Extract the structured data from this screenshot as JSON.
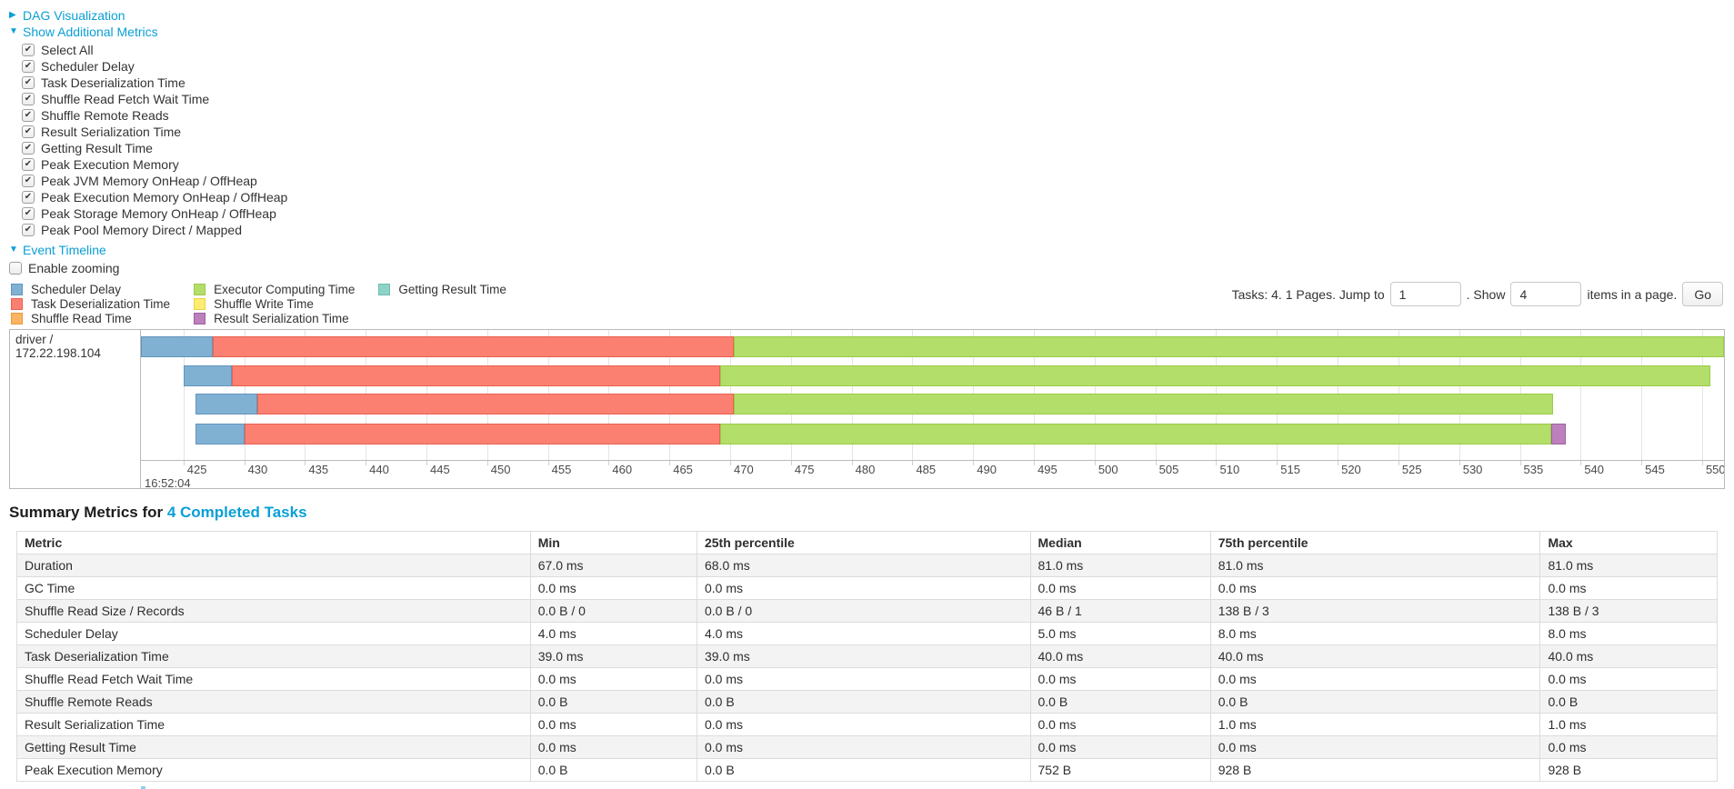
{
  "colors": {
    "link": "#0a9fd6",
    "scheduler_delay": {
      "fill": "#80B1D3",
      "border": "#6295bd"
    },
    "task_deserialization": {
      "fill": "#FB8072",
      "border": "#e9614f"
    },
    "shuffle_read": {
      "fill": "#FDB462",
      "border": "#ea9a3c"
    },
    "executor_computing": {
      "fill": "#B3DE69",
      "border": "#9cc94b"
    },
    "shuffle_write": {
      "fill": "#FFED6F",
      "border": "#e5d34d"
    },
    "result_serialization": {
      "fill": "#BC80BD",
      "border": "#a05fa2"
    },
    "getting_result": {
      "fill": "#8DD3C7",
      "border": "#6fbcaf"
    }
  },
  "sections": {
    "dag": {
      "label": "DAG Visualization",
      "state": "collapsed",
      "arrow": "▶"
    },
    "metrics": {
      "label": "Show Additional Metrics",
      "state": "expanded",
      "arrow": "▼"
    },
    "timeline": {
      "label": "Event Timeline",
      "state": "expanded",
      "arrow": "▼"
    }
  },
  "metric_checkboxes": [
    {
      "label": "Select All",
      "checked": true
    },
    {
      "label": "Scheduler Delay",
      "checked": true
    },
    {
      "label": "Task Deserialization Time",
      "checked": true
    },
    {
      "label": "Shuffle Read Fetch Wait Time",
      "checked": true
    },
    {
      "label": "Shuffle Remote Reads",
      "checked": true
    },
    {
      "label": "Result Serialization Time",
      "checked": true
    },
    {
      "label": "Getting Result Time",
      "checked": true
    },
    {
      "label": "Peak Execution Memory",
      "checked": true
    },
    {
      "label": "Peak JVM Memory OnHeap / OffHeap",
      "checked": true
    },
    {
      "label": "Peak Execution Memory OnHeap / OffHeap",
      "checked": true
    },
    {
      "label": "Peak Storage Memory OnHeap / OffHeap",
      "checked": true
    },
    {
      "label": "Peak Pool Memory Direct / Mapped",
      "checked": true
    }
  ],
  "enable_zooming": {
    "label": "Enable zooming",
    "checked": false
  },
  "pagination": {
    "tasks_text": "Tasks: 4. 1 Pages. Jump to",
    "jump_value": "1",
    "mid_text": ". Show",
    "show_value": "4",
    "suffix_text": "items in a page.",
    "go_label": "Go"
  },
  "chart_data": {
    "type": "timeline",
    "group": "driver / 172.22.198.104",
    "axis": {
      "min": 421.5,
      "max": 551.8,
      "first_tick": 425,
      "tick_step": 5,
      "last_tick": 550,
      "major_label": "16:52:04"
    },
    "legend": [
      {
        "key": "scheduler_delay",
        "label": "Scheduler Delay"
      },
      {
        "key": "task_deserialization",
        "label": "Task Deserialization Time"
      },
      {
        "key": "shuffle_read",
        "label": "Shuffle Read Time"
      },
      {
        "key": "executor_computing",
        "label": "Executor Computing Time"
      },
      {
        "key": "shuffle_write",
        "label": "Shuffle Write Time"
      },
      {
        "key": "result_serialization",
        "label": "Result Serialization Time"
      },
      {
        "key": "getting_result",
        "label": "Getting Result Time"
      }
    ],
    "tasks": [
      {
        "segments": [
          {
            "type": "scheduler_delay",
            "start": 421.5,
            "end": 427.4
          },
          {
            "type": "task_deserialization",
            "start": 427.4,
            "end": 470.3
          },
          {
            "type": "executor_computing",
            "start": 470.3,
            "end": 551.8
          }
        ]
      },
      {
        "segments": [
          {
            "type": "scheduler_delay",
            "start": 425.0,
            "end": 429.0
          },
          {
            "type": "task_deserialization",
            "start": 429.0,
            "end": 469.2
          },
          {
            "type": "executor_computing",
            "start": 469.2,
            "end": 550.7
          }
        ]
      },
      {
        "segments": [
          {
            "type": "scheduler_delay",
            "start": 426.0,
            "end": 431.1
          },
          {
            "type": "task_deserialization",
            "start": 431.1,
            "end": 470.3
          },
          {
            "type": "executor_computing",
            "start": 470.3,
            "end": 537.7
          }
        ]
      },
      {
        "segments": [
          {
            "type": "scheduler_delay",
            "start": 426.0,
            "end": 430.0
          },
          {
            "type": "task_deserialization",
            "start": 430.0,
            "end": 469.2
          },
          {
            "type": "executor_computing",
            "start": 469.2,
            "end": 537.6
          },
          {
            "type": "result_serialization",
            "start": 537.6,
            "end": 538.8
          }
        ]
      }
    ]
  },
  "summary": {
    "heading_prefix": "Summary Metrics for ",
    "heading_link": "4 Completed Tasks",
    "table": {
      "columns": [
        "Metric",
        "Min",
        "25th percentile",
        "Median",
        "75th percentile",
        "Max"
      ],
      "col_widths": [
        "30.2%",
        "9.8%",
        "19.6%",
        "10.6%",
        "19.4%",
        "10.4%"
      ],
      "rows": [
        {
          "metric": "Duration",
          "values": [
            "67.0 ms",
            "68.0 ms",
            "81.0 ms",
            "81.0 ms",
            "81.0 ms"
          ]
        },
        {
          "metric": "GC Time",
          "values": [
            "0.0 ms",
            "0.0 ms",
            "0.0 ms",
            "0.0 ms",
            "0.0 ms"
          ]
        },
        {
          "metric": "Shuffle Read Size / Records",
          "values": [
            "0.0 B / 0",
            "0.0 B / 0",
            "46 B / 1",
            "138 B / 3",
            "138 B / 3"
          ]
        },
        {
          "metric": "Scheduler Delay",
          "values": [
            "4.0 ms",
            "4.0 ms",
            "5.0 ms",
            "8.0 ms",
            "8.0 ms"
          ]
        },
        {
          "metric": "Task Deserialization Time",
          "values": [
            "39.0 ms",
            "39.0 ms",
            "40.0 ms",
            "40.0 ms",
            "40.0 ms"
          ]
        },
        {
          "metric": "Shuffle Read Fetch Wait Time",
          "values": [
            "0.0 ms",
            "0.0 ms",
            "0.0 ms",
            "0.0 ms",
            "0.0 ms"
          ]
        },
        {
          "metric": "Shuffle Remote Reads",
          "values": [
            "0.0 B",
            "0.0 B",
            "0.0 B",
            "0.0 B",
            "0.0 B"
          ]
        },
        {
          "metric": "Result Serialization Time",
          "values": [
            "0.0 ms",
            "0.0 ms",
            "0.0 ms",
            "1.0 ms",
            "1.0 ms"
          ]
        },
        {
          "metric": "Getting Result Time",
          "values": [
            "0.0 ms",
            "0.0 ms",
            "0.0 ms",
            "0.0 ms",
            "0.0 ms"
          ]
        },
        {
          "metric": "Peak Execution Memory",
          "values": [
            "0.0 B",
            "0.0 B",
            "752 B",
            "928 B",
            "928 B"
          ]
        }
      ]
    }
  }
}
